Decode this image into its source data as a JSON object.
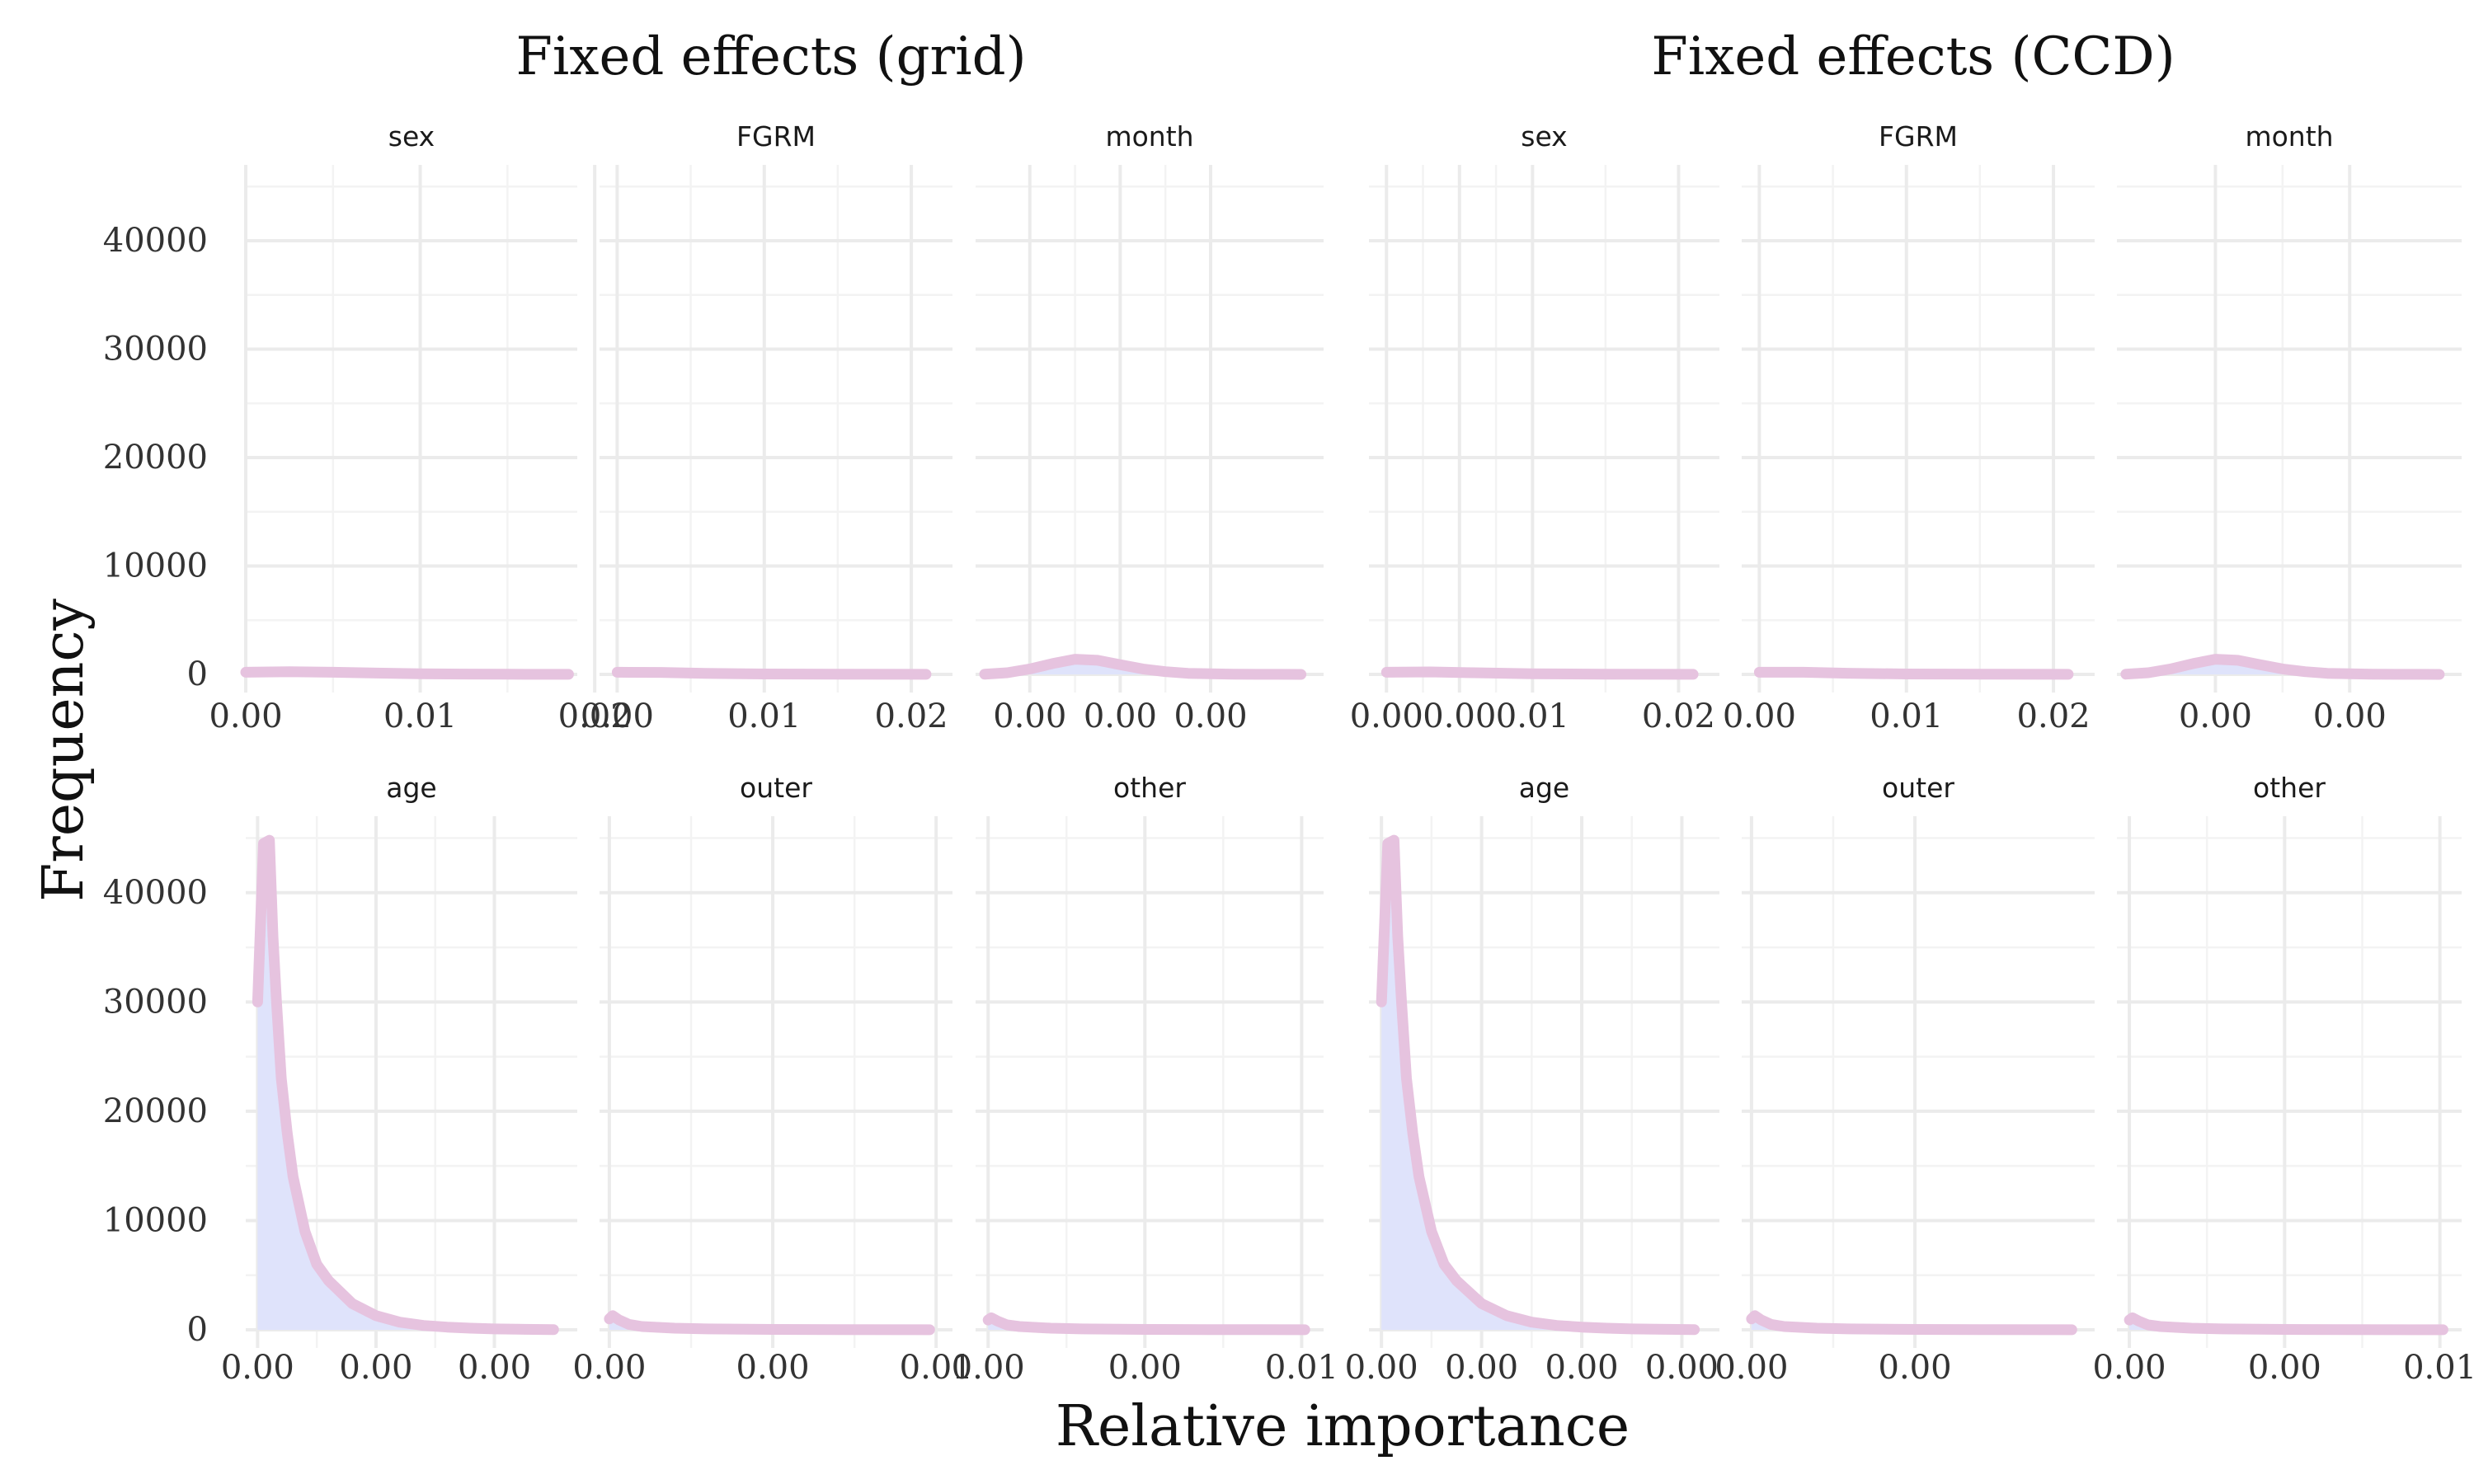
{
  "group_titles": [
    "Fixed effects (grid)",
    "Fixed effects (CCD)"
  ],
  "xlabel": "Relative importance",
  "ylabel": "Frequency",
  "colors": {
    "fill": "#dfe3fb",
    "line": "#e6c3df",
    "grid": "#ebebeb"
  },
  "chart_data": [
    {
      "type": "area",
      "group": "Fixed effects (grid)",
      "panel": "sex",
      "ylim": [
        0,
        47000
      ],
      "y_ticks": [
        0,
        10000,
        20000,
        30000,
        40000
      ],
      "x_domain": [
        0,
        0.019
      ],
      "x_ticks": [
        0,
        0.01,
        0.02
      ],
      "x_tick_labels": [
        "0.00",
        "0.01",
        "0.02"
      ],
      "x": [
        0,
        0.0025,
        0.005,
        0.0075,
        0.01,
        0.0125,
        0.015,
        0.0185
      ],
      "y": [
        200,
        250,
        200,
        120,
        60,
        30,
        15,
        5
      ]
    },
    {
      "type": "area",
      "group": "Fixed effects (grid)",
      "panel": "FGRM",
      "ylim": [
        0,
        47000
      ],
      "y_ticks": [
        0,
        10000,
        20000,
        30000,
        40000
      ],
      "x_domain": [
        -0.0012,
        0.0228
      ],
      "x_ticks": [
        0,
        0.01,
        0.02
      ],
      "x_tick_labels": [
        "0.00",
        "0.01",
        "0.02"
      ],
      "x": [
        0,
        0.003,
        0.006,
        0.01,
        0.015,
        0.021
      ],
      "y": [
        200,
        180,
        100,
        40,
        15,
        5
      ]
    },
    {
      "type": "area",
      "group": "Fixed effects (grid)",
      "panel": "month",
      "ylim": [
        0,
        47000
      ],
      "y_ticks": [
        0,
        10000,
        20000,
        30000,
        40000
      ],
      "x_domain": [
        -0.0052,
        0.0025
      ],
      "x_ticks": [
        -0.004,
        -0.002,
        0.0
      ],
      "x_tick_labels": [
        "0.00",
        "0.00",
        "0.00"
      ],
      "x": [
        -0.005,
        -0.0045,
        -0.004,
        -0.0035,
        -0.003,
        -0.0025,
        -0.002,
        -0.0015,
        -0.001,
        -0.0005,
        0.0,
        0.0005,
        0.001,
        0.0015,
        0.002
      ],
      "y": [
        20,
        150,
        500,
        1000,
        1400,
        1300,
        900,
        500,
        250,
        100,
        50,
        20,
        10,
        5,
        0
      ]
    },
    {
      "type": "area",
      "group": "Fixed effects (grid)",
      "panel": "age",
      "ylim": [
        0,
        47000
      ],
      "y_ticks": [
        0,
        10000,
        20000,
        30000,
        40000
      ],
      "x_domain": [
        -0.0001,
        0.0027
      ],
      "x_ticks": [
        0,
        0.001,
        0.002
      ],
      "x_tick_labels": [
        "0.00",
        "0.00",
        "0.00"
      ],
      "x": [
        0,
        5e-05,
        0.0001,
        0.00013,
        0.00016,
        0.0002,
        0.00025,
        0.0003,
        0.0004,
        0.0005,
        0.0006,
        0.0008,
        0.001,
        0.0012,
        0.0014,
        0.0016,
        0.0018,
        0.002,
        0.0022,
        0.0025
      ],
      "y": [
        30000,
        44500,
        44800,
        36000,
        30000,
        23000,
        18000,
        14000,
        9000,
        6000,
        4500,
        2400,
        1300,
        700,
        400,
        250,
        150,
        80,
        50,
        20
      ]
    },
    {
      "type": "area",
      "group": "Fixed effects (grid)",
      "panel": "outer",
      "ylim": [
        0,
        47000
      ],
      "y_ticks": [
        0,
        10000,
        20000,
        30000,
        40000
      ],
      "x_domain": [
        -0.0003,
        0.0105
      ],
      "x_ticks": [
        0,
        0.005,
        0.01
      ],
      "x_tick_labels": [
        "0.00",
        "0.00",
        "0.01"
      ],
      "x": [
        0,
        0.0001,
        0.0003,
        0.0006,
        0.001,
        0.002,
        0.003,
        0.005,
        0.007,
        0.0098
      ],
      "y": [
        1000,
        1300,
        900,
        500,
        300,
        150,
        80,
        40,
        20,
        5
      ]
    },
    {
      "type": "area",
      "group": "Fixed effects (grid)",
      "panel": "other",
      "ylim": [
        0,
        47000
      ],
      "y_ticks": [
        0,
        10000,
        20000,
        30000,
        40000
      ],
      "x_domain": [
        -0.0004,
        0.0107
      ],
      "x_ticks": [
        0,
        0.005,
        0.01
      ],
      "x_tick_labels": [
        "0.00",
        "0.00",
        "0.01"
      ],
      "x": [
        0,
        0.0001,
        0.0003,
        0.0006,
        0.001,
        0.002,
        0.003,
        0.005,
        0.007,
        0.0101
      ],
      "y": [
        900,
        1100,
        800,
        450,
        300,
        150,
        80,
        40,
        20,
        5
      ]
    },
    {
      "type": "area",
      "group": "Fixed effects (CCD)",
      "panel": "sex",
      "ylim": [
        0,
        47000
      ],
      "y_ticks": [
        0,
        10000,
        20000,
        30000,
        40000
      ],
      "x_domain": [
        -0.0012,
        0.0228
      ],
      "x_ticks": [
        0,
        0.005,
        0.01,
        0.02
      ],
      "x_tick_labels": [
        "0.00",
        "0.00",
        "0.01",
        "0.02"
      ],
      "x": [
        0,
        0.003,
        0.006,
        0.01,
        0.015,
        0.021
      ],
      "y": [
        200,
        230,
        150,
        60,
        20,
        5
      ]
    },
    {
      "type": "area",
      "group": "Fixed effects (CCD)",
      "panel": "FGRM",
      "ylim": [
        0,
        47000
      ],
      "y_ticks": [
        0,
        10000,
        20000,
        30000,
        40000
      ],
      "x_domain": [
        -0.0012,
        0.0228
      ],
      "x_ticks": [
        0,
        0.01,
        0.02
      ],
      "x_tick_labels": [
        "0.00",
        "0.01",
        "0.02"
      ],
      "x": [
        0,
        0.003,
        0.006,
        0.01,
        0.015,
        0.021
      ],
      "y": [
        200,
        200,
        110,
        40,
        15,
        5
      ]
    },
    {
      "type": "area",
      "group": "Fixed effects (CCD)",
      "panel": "month",
      "ylim": [
        0,
        47000
      ],
      "y_ticks": [
        0,
        10000,
        20000,
        30000,
        40000
      ],
      "x_domain": [
        -0.0052,
        0.0025
      ],
      "x_ticks": [
        -0.003,
        0.0
      ],
      "x_tick_labels": [
        "0.00",
        "0.00"
      ],
      "x": [
        -0.005,
        -0.0045,
        -0.004,
        -0.0035,
        -0.003,
        -0.0025,
        -0.002,
        -0.0015,
        -0.001,
        -0.0005,
        0.0,
        0.0005,
        0.001,
        0.0015,
        0.002
      ],
      "y": [
        20,
        150,
        500,
        1000,
        1400,
        1300,
        900,
        500,
        250,
        100,
        50,
        20,
        10,
        5,
        0
      ]
    },
    {
      "type": "area",
      "group": "Fixed effects (CCD)",
      "panel": "age",
      "ylim": [
        0,
        47000
      ],
      "y_ticks": [
        0,
        10000,
        20000,
        30000,
        40000
      ],
      "x_domain": [
        -0.0001,
        0.0027
      ],
      "x_ticks": [
        0,
        0.0008,
        0.0016,
        0.0024
      ],
      "x_tick_labels": [
        "0.00",
        "0.00",
        "0.00",
        "0.00"
      ],
      "x": [
        0,
        5e-05,
        0.0001,
        0.00013,
        0.00016,
        0.0002,
        0.00025,
        0.0003,
        0.0004,
        0.0005,
        0.0006,
        0.0008,
        0.001,
        0.0012,
        0.0014,
        0.0016,
        0.0018,
        0.002,
        0.0022,
        0.0025
      ],
      "y": [
        30000,
        44500,
        44800,
        36000,
        30000,
        23000,
        18000,
        14000,
        9000,
        6000,
        4500,
        2400,
        1300,
        700,
        400,
        250,
        150,
        80,
        50,
        20
      ]
    },
    {
      "type": "area",
      "group": "Fixed effects (CCD)",
      "panel": "outer",
      "ylim": [
        0,
        47000
      ],
      "y_ticks": [
        0,
        10000,
        20000,
        30000,
        40000
      ],
      "x_domain": [
        -0.0003,
        0.0105
      ],
      "x_ticks": [
        0,
        0.005
      ],
      "x_tick_labels": [
        "0.00",
        "0.00"
      ],
      "x": [
        0,
        0.0001,
        0.0003,
        0.0006,
        0.001,
        0.002,
        0.003,
        0.005,
        0.007,
        0.0098
      ],
      "y": [
        1000,
        1300,
        900,
        500,
        300,
        150,
        80,
        40,
        20,
        5
      ]
    },
    {
      "type": "area",
      "group": "Fixed effects (CCD)",
      "panel": "other",
      "ylim": [
        0,
        47000
      ],
      "y_ticks": [
        0,
        10000,
        20000,
        30000,
        40000
      ],
      "x_domain": [
        -0.0004,
        0.0107
      ],
      "x_ticks": [
        0,
        0.005,
        0.01
      ],
      "x_tick_labels": [
        "0.00",
        "0.00",
        "0.01"
      ],
      "x": [
        0,
        0.0001,
        0.0003,
        0.0006,
        0.001,
        0.002,
        0.003,
        0.005,
        0.007,
        0.0101
      ],
      "y": [
        900,
        1100,
        800,
        450,
        300,
        150,
        80,
        40,
        20,
        5
      ]
    }
  ]
}
